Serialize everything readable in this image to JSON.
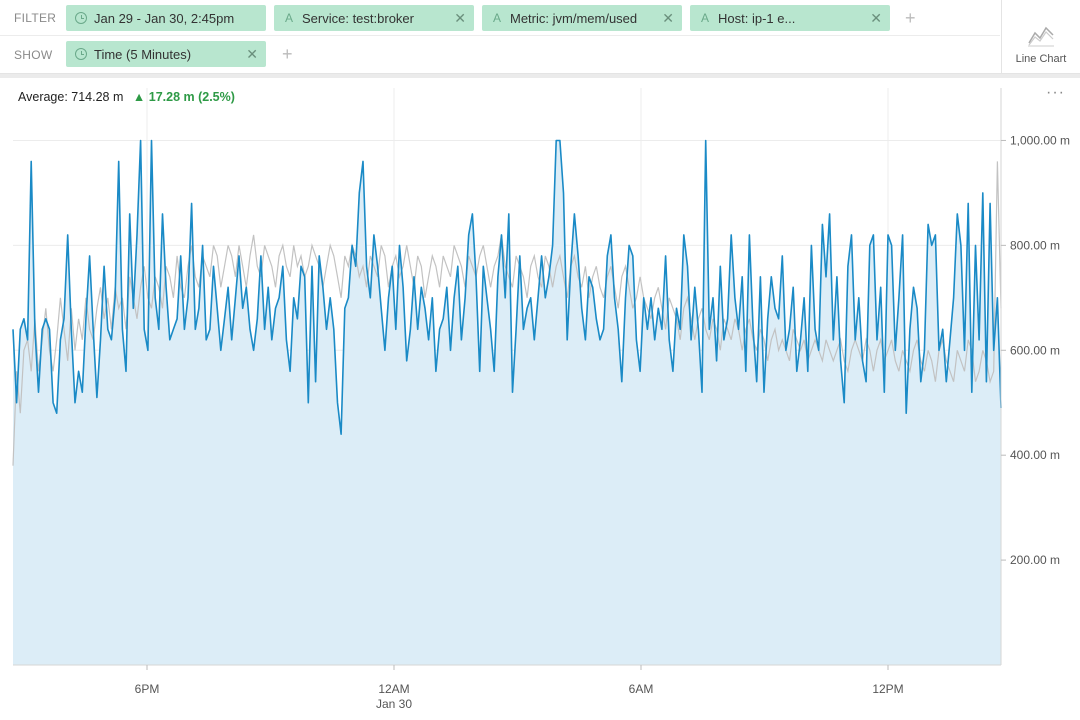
{
  "filter": {
    "label": "FILTER",
    "pills": [
      {
        "icon": "clock-icon",
        "text": "Jan 29 - Jan 30, 2:45pm"
      },
      {
        "icon": "attribute-icon",
        "text": "Service: test:broker"
      },
      {
        "icon": "attribute-icon",
        "text": "Metric: jvm/mem/used"
      },
      {
        "icon": "attribute-icon",
        "text": "Host: ip-1              e..."
      }
    ],
    "add": "+"
  },
  "show": {
    "label": "SHOW",
    "pills": [
      {
        "icon": "clock-icon",
        "text": "Time (5 Minutes)"
      }
    ],
    "add": "+"
  },
  "chart_type": {
    "label": "Line Chart",
    "icon": "line-chart-icon"
  },
  "summary": {
    "average": "Average: 714.28 m",
    "delta": "17.28 m (2.5%)",
    "delta_icon": "up-triangle-icon"
  },
  "more_menu": "···",
  "colors": {
    "pill_bg": "#b8e6cf",
    "current_line": "#1a8ac6",
    "current_fill": "#dcedf7",
    "previous_line": "#c2c2c2",
    "delta_up": "#2e9a46"
  },
  "chart_data": {
    "type": "area",
    "x_ticks": [
      "6PM",
      "12AM",
      "6AM",
      "12PM"
    ],
    "x_sub_labels": [
      "",
      "Jan 30",
      "",
      ""
    ],
    "y_ticks": [
      "200.00 m",
      "400.00 m",
      "600.00 m",
      "800.00 m",
      "1,000.00 m"
    ],
    "y_tick_values": [
      200,
      400,
      600,
      800,
      1000
    ],
    "ylim": [
      0,
      1100
    ],
    "time_range": [
      "Jan 29 14:50",
      "Jan 30 14:45"
    ],
    "interval": "5 Minutes",
    "series": [
      {
        "role": "current",
        "color": "#1a8ac6",
        "values": [
          640,
          500,
          640,
          660,
          620,
          960,
          640,
          520,
          640,
          660,
          640,
          500,
          480,
          620,
          660,
          820,
          640,
          500,
          560,
          520,
          660,
          780,
          640,
          510,
          620,
          760,
          640,
          620,
          700,
          960,
          640,
          560,
          860,
          680,
          820,
          1000,
          640,
          600,
          1000,
          700,
          640,
          860,
          720,
          620,
          640,
          660,
          780,
          640,
          700,
          880,
          640,
          680,
          800,
          620,
          640,
          760,
          680,
          600,
          660,
          720,
          620,
          700,
          780,
          680,
          720,
          640,
          600,
          660,
          780,
          640,
          720,
          620,
          680,
          700,
          760,
          620,
          560,
          700,
          660,
          760,
          740,
          500,
          760,
          540,
          780,
          720,
          640,
          700,
          640,
          500,
          440,
          680,
          700,
          800,
          760,
          900,
          960,
          760,
          700,
          820,
          760,
          680,
          600,
          700,
          760,
          640,
          800,
          720,
          580,
          640,
          740,
          640,
          720,
          680,
          620,
          700,
          560,
          640,
          660,
          720,
          600,
          700,
          760,
          620,
          700,
          820,
          860,
          740,
          560,
          760,
          700,
          640,
          560,
          740,
          820,
          700,
          860,
          520,
          640,
          780,
          640,
          680,
          700,
          620,
          700,
          780,
          700,
          740,
          800,
          1000,
          1000,
          900,
          620,
          760,
          860,
          780,
          680,
          620,
          740,
          720,
          660,
          620,
          640,
          780,
          820,
          700,
          640,
          540,
          700,
          800,
          780,
          620,
          560,
          700,
          640,
          700,
          620,
          680,
          640,
          780,
          620,
          560,
          680,
          640,
          820,
          760,
          620,
          720,
          640,
          520,
          1000,
          640,
          700,
          580,
          760,
          620,
          660,
          820,
          700,
          640,
          740,
          560,
          820,
          640,
          540,
          740,
          520,
          660,
          740,
          680,
          660,
          780,
          600,
          640,
          720,
          560,
          620,
          700,
          560,
          800,
          640,
          600,
          840,
          740,
          860,
          620,
          740,
          580,
          500,
          760,
          820,
          620,
          700,
          580,
          540,
          800,
          820,
          620,
          720,
          520,
          820,
          800,
          600,
          700,
          820,
          480,
          640,
          720,
          680,
          540,
          600,
          840,
          800,
          820,
          600,
          640,
          540,
          620,
          700,
          860,
          800,
          600,
          880,
          520,
          800,
          620,
          900,
          540,
          880,
          600,
          700,
          490
        ]
      },
      {
        "role": "previous",
        "color": "#c2c2c2",
        "values": [
          380,
          560,
          480,
          600,
          620,
          560,
          660,
          560,
          620,
          680,
          600,
          560,
          620,
          700,
          640,
          580,
          680,
          600,
          660,
          620,
          700,
          640,
          620,
          680,
          720,
          660,
          700,
          640,
          720,
          680,
          700,
          640,
          740,
          700,
          660,
          720,
          760,
          700,
          680,
          740,
          720,
          680,
          760,
          740,
          700,
          780,
          720,
          700,
          760,
          800,
          740,
          720,
          780,
          760,
          740,
          800,
          780,
          720,
          760,
          800,
          780,
          740,
          800,
          760,
          720,
          780,
          820,
          760,
          740,
          800,
          780,
          760,
          720,
          780,
          800,
          760,
          740,
          800,
          760,
          780,
          740,
          760,
          800,
          780,
          760,
          720,
          760,
          800,
          780,
          740,
          700,
          780,
          760,
          800,
          780,
          740,
          760,
          720,
          780,
          760,
          740,
          800,
          780,
          720,
          760,
          780,
          740,
          760,
          800,
          760,
          720,
          780,
          760,
          700,
          740,
          780,
          760,
          720,
          780,
          760,
          740,
          800,
          780,
          760,
          720,
          780,
          760,
          740,
          780,
          800,
          760,
          720,
          760,
          780,
          820,
          760,
          740,
          720,
          780,
          760,
          740,
          700,
          760,
          780,
          740,
          720,
          780,
          760,
          720,
          760,
          780,
          740,
          700,
          760,
          780,
          740,
          720,
          760,
          700,
          740,
          760,
          720,
          700,
          740,
          760,
          720,
          680,
          740,
          760,
          720,
          680,
          700,
          740,
          700,
          680,
          660,
          700,
          720,
          680,
          640,
          700,
          680,
          660,
          620,
          680,
          700,
          660,
          620,
          660,
          680,
          640,
          620,
          660,
          640,
          600,
          660,
          640,
          620,
          660,
          640,
          600,
          640,
          660,
          620,
          600,
          640,
          620,
          580,
          620,
          640,
          600,
          620,
          600,
          580,
          640,
          620,
          600,
          620,
          580,
          600,
          620,
          600,
          580,
          620,
          600,
          580,
          600,
          620,
          580,
          560,
          600,
          620,
          600,
          580,
          620,
          600,
          560,
          600,
          620,
          580,
          600,
          620,
          580,
          560,
          600,
          580,
          560,
          600,
          620,
          580,
          560,
          600,
          580,
          540,
          600,
          620,
          580,
          560,
          540,
          600,
          580,
          560,
          620,
          600,
          540,
          560,
          600,
          580,
          540,
          560,
          960,
          680
        ]
      }
    ]
  }
}
